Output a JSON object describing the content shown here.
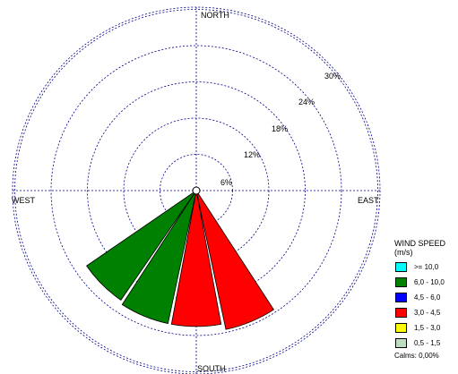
{
  "chart_data": {
    "type": "windrose",
    "directions": [
      "NORTH",
      "EAST",
      "SOUTH",
      "WEST"
    ],
    "ring_labels": [
      "6%",
      "12%",
      "18%",
      "24%",
      "30%"
    ],
    "ring_values": [
      6,
      12,
      18,
      24,
      30
    ],
    "petals": [
      {
        "direction_deg": 157.5,
        "bin": "3,0 - 4,5",
        "percent": 23.5
      },
      {
        "direction_deg": 180,
        "bin": "3,0 - 4,5",
        "percent": 22.5
      },
      {
        "direction_deg": 202.5,
        "bin": "6,0 - 10,0",
        "percent": 22.5
      },
      {
        "direction_deg": 225,
        "bin": "6,0 - 10,0",
        "percent": 22.0
      }
    ],
    "legend": {
      "title_line1": "WIND SPEED",
      "title_line2": "(m/s)",
      "placement": "bottom-right",
      "bins": [
        {
          "label": ">= 10,0",
          "color": "#00ffff"
        },
        {
          "label": "6,0 - 10,0",
          "color": "#008000"
        },
        {
          "label": "4,5 - 6,0",
          "color": "#0000ff"
        },
        {
          "label": "3,0 - 4,5",
          "color": "#ff0000"
        },
        {
          "label": "1,5 - 3,0",
          "color": "#ffff00"
        },
        {
          "label": "0,5 - 1,5",
          "color": "#c0dcc0"
        }
      ],
      "calms": "Calms: 0,00%"
    },
    "grid": true,
    "grid_color": "#00008b"
  }
}
